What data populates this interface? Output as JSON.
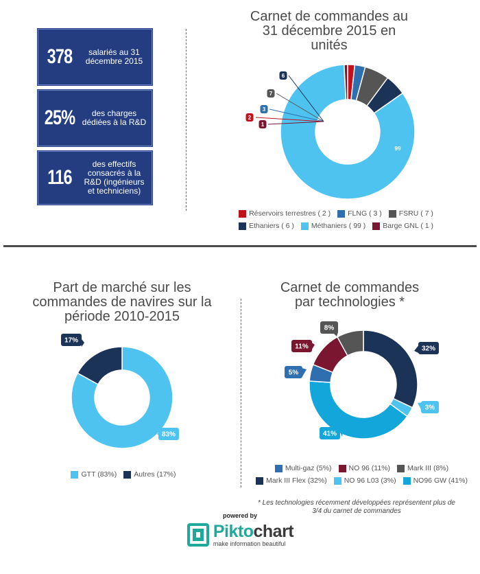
{
  "stats": [
    {
      "number": "378",
      "text": "salariés au 31 décembre 2015"
    },
    {
      "number": "25%",
      "text": "des charges dédiées à la R&D"
    },
    {
      "number": "116",
      "text": "des effectifs consacrés à la R&D (ingénieurs et techniciens)"
    }
  ],
  "colors": {
    "navy": "#233d80",
    "red": "#c0121d",
    "blue_mid": "#2f6fb0",
    "grey": "#555555",
    "dark_navy": "#1c3358",
    "light_blue": "#4fc3f0",
    "maroon": "#7a1630",
    "cyan": "#12a6db"
  },
  "chart_data": [
    {
      "type": "pie",
      "title": "Carnet de commandes au 31 décembre 2015 en unités",
      "labels": [
        "Réservoirs terrestres",
        "FLNG",
        "FSRU",
        "Ethaniers",
        "Méthaniers",
        "Barge GNL"
      ],
      "values": [
        2,
        3,
        7,
        6,
        99,
        1
      ],
      "value_labels": [
        "2",
        "3",
        "7",
        "6",
        "99",
        "1"
      ],
      "legend_values": [
        "( 2 )",
        "( 3 )",
        "( 7 )",
        "( 6 )",
        "( 99 )",
        "( 1 )"
      ],
      "colors": [
        "#c0121d",
        "#2f6fb0",
        "#555555",
        "#1c3358",
        "#4fc3f0",
        "#7a1630"
      ],
      "donut": true
    },
    {
      "type": "pie",
      "title": "Part de marché sur les commandes de navires sur la période 2010-2015",
      "labels": [
        "GTT (83%)",
        "Autres (17%)"
      ],
      "values": [
        83,
        17
      ],
      "value_labels": [
        "83%",
        "17%"
      ],
      "colors": [
        "#4fc3f0",
        "#1c3358"
      ],
      "donut": true
    },
    {
      "type": "pie",
      "title": "Carnet de commandes par technologies *",
      "labels": [
        "Multi-gaz (5%)",
        "NO 96 (11%)",
        "Mark III (8%)",
        "Mark III Flex (32%)",
        "NO 96 L03 (3%)",
        "NO96 GW (41%)"
      ],
      "values": [
        5,
        11,
        8,
        32,
        3,
        41
      ],
      "value_labels": [
        "5%",
        "11%",
        "8%",
        "32%",
        "3%",
        "41%"
      ],
      "colors": [
        "#2f6fb0",
        "#7a1630",
        "#555555",
        "#1c3358",
        "#4fc3f0",
        "#12a6db"
      ],
      "donut": true
    }
  ],
  "footnote": "* Les technologies récemment développées représentent plus de 3/4 du carnet de commandes",
  "brand": {
    "powered_by": "powered by",
    "name_part1": "Pikto",
    "name_part2": "chart",
    "tagline": "make information beautiful"
  }
}
